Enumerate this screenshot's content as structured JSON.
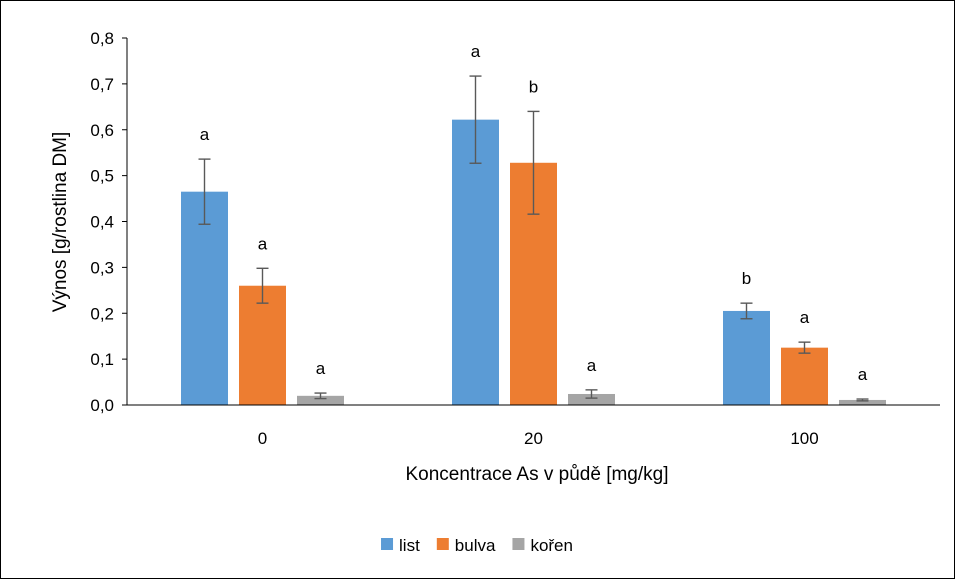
{
  "chart_data": {
    "type": "bar",
    "xlabel": "Koncentrace As v půdě [mg/kg]",
    "ylabel": "Výnos [g/rostlina DM]",
    "categories": [
      "0",
      "20",
      "100"
    ],
    "ylim": [
      0,
      0.8
    ],
    "yticks": [
      "0,0",
      "0,1",
      "0,2",
      "0,3",
      "0,4",
      "0,5",
      "0,6",
      "0,7",
      "0,8"
    ],
    "grid": false,
    "legend_position": "bottom",
    "series": [
      {
        "name": "list",
        "color": "#5B9BD5",
        "values": [
          0.465,
          0.622,
          0.205
        ],
        "errors": [
          0.071,
          0.095,
          0.017
        ],
        "labels": [
          "a",
          "a",
          "b"
        ]
      },
      {
        "name": "bulva",
        "color": "#ED7D31",
        "values": [
          0.26,
          0.528,
          0.125
        ],
        "errors": [
          0.038,
          0.112,
          0.012
        ],
        "labels": [
          "a",
          "b",
          "a"
        ]
      },
      {
        "name": "kořen",
        "color": "#A5A5A5",
        "values": [
          0.02,
          0.024,
          0.011
        ],
        "errors": [
          0.006,
          0.009,
          0.002
        ],
        "labels": [
          "a",
          "a",
          "a"
        ]
      }
    ]
  }
}
